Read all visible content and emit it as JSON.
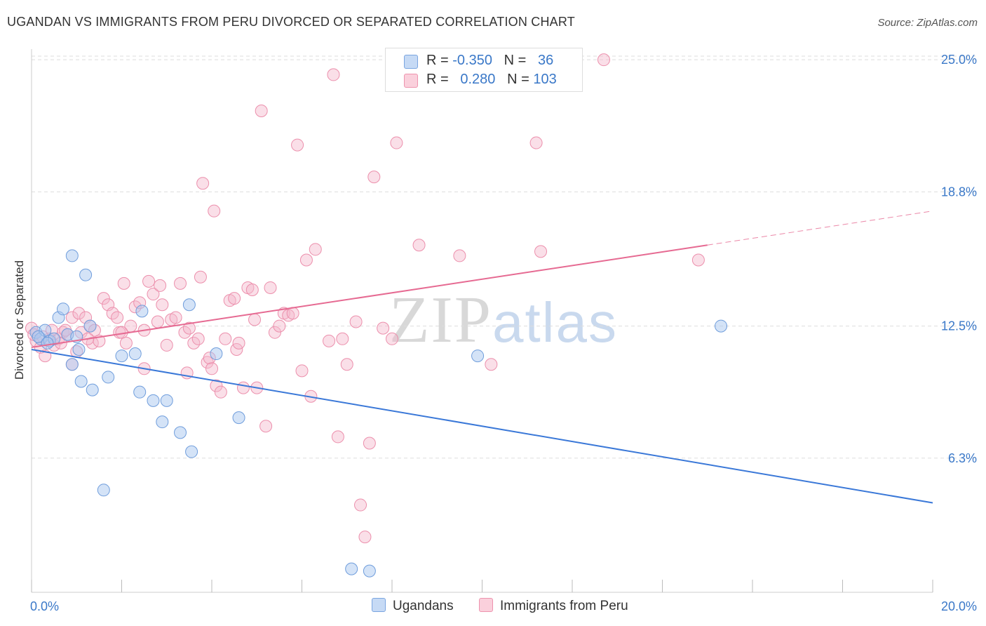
{
  "header": {
    "title": "UGANDAN VS IMMIGRANTS FROM PERU DIVORCED OR SEPARATED CORRELATION CHART",
    "source": "Source: ZipAtlas.com"
  },
  "legend": {
    "rows": [
      {
        "r_label": "R =",
        "r_value": "-0.350",
        "n_label": "N =",
        "n_value": "36",
        "color": "#a9c8f0"
      },
      {
        "r_label": "R =",
        "r_value": "0.280",
        "n_label": "N =",
        "n_value": "103",
        "color": "#f5b8cb"
      }
    ]
  },
  "bottom_legend": {
    "ugandans": "Ugandans",
    "peru": "Immigrants from Peru"
  },
  "watermark": {
    "zip": "ZIP",
    "atlas": "atlas"
  },
  "colors": {
    "blue": "#3a78d8",
    "blue_fill": "#a9c8f0",
    "pink": "#e66a92",
    "pink_fill": "#f5b8cb",
    "axis_text": "#3a78c8",
    "grid": "#dddddd"
  },
  "chart_data": {
    "type": "scatter",
    "title": "UGANDAN VS IMMIGRANTS FROM PERU DIVORCED OR SEPARATED CORRELATION CHART",
    "xlabel": "",
    "ylabel": "Divorced or Separated",
    "xlim": [
      0,
      20
    ],
    "ylim": [
      0,
      25.5
    ],
    "x_tick_labels": [
      "0.0%",
      "20.0%"
    ],
    "y_ticks": [
      6.3,
      12.5,
      18.8,
      25.0
    ],
    "y_tick_labels": [
      "6.3%",
      "12.5%",
      "18.8%",
      "25.0%"
    ],
    "grid": true,
    "series": [
      {
        "name": "Ugandans",
        "color": "#3a78d8",
        "trend": {
          "x0": 0,
          "y0": 11.4,
          "x1": 20,
          "y1": 4.2
        },
        "points": [
          [
            0.1,
            12.2
          ],
          [
            0.2,
            11.9
          ],
          [
            0.3,
            12.3
          ],
          [
            0.4,
            11.8
          ],
          [
            0.5,
            11.9
          ],
          [
            0.6,
            12.9
          ],
          [
            0.7,
            13.3
          ],
          [
            0.8,
            12.1
          ],
          [
            0.9,
            10.7
          ],
          [
            0.9,
            15.8
          ],
          [
            1.0,
            12.0
          ],
          [
            1.05,
            11.4
          ],
          [
            1.1,
            9.9
          ],
          [
            1.2,
            14.9
          ],
          [
            1.3,
            12.5
          ],
          [
            1.35,
            9.5
          ],
          [
            1.6,
            4.8
          ],
          [
            1.7,
            10.1
          ],
          [
            2.0,
            11.1
          ],
          [
            2.3,
            11.2
          ],
          [
            2.4,
            9.4
          ],
          [
            2.45,
            13.2
          ],
          [
            2.7,
            9.0
          ],
          [
            2.9,
            8.0
          ],
          [
            3.0,
            9.0
          ],
          [
            3.3,
            7.5
          ],
          [
            3.5,
            13.5
          ],
          [
            3.55,
            6.6
          ],
          [
            4.1,
            11.2
          ],
          [
            4.6,
            8.2
          ],
          [
            7.1,
            1.1
          ],
          [
            7.5,
            1.0
          ],
          [
            9.9,
            11.1
          ],
          [
            15.3,
            12.5
          ],
          [
            0.15,
            12.0
          ],
          [
            0.35,
            11.7
          ]
        ]
      },
      {
        "name": "Immigrants from Peru",
        "color": "#e66a92",
        "trend": {
          "x0": 0,
          "y0": 11.5,
          "x1": 15.0,
          "y1": 16.3,
          "dash_x1": 20,
          "dash_y1": 17.9
        },
        "points": [
          [
            0.0,
            12.4
          ],
          [
            0.1,
            11.8
          ],
          [
            0.2,
            11.5
          ],
          [
            0.3,
            11.1
          ],
          [
            0.4,
            11.9
          ],
          [
            0.5,
            11.6
          ],
          [
            0.6,
            11.9
          ],
          [
            0.7,
            12.2
          ],
          [
            0.8,
            12.1
          ],
          [
            0.9,
            10.7
          ],
          [
            0.9,
            12.9
          ],
          [
            1.0,
            11.3
          ],
          [
            1.05,
            13.1
          ],
          [
            1.1,
            12.2
          ],
          [
            1.2,
            12.9
          ],
          [
            1.3,
            12.5
          ],
          [
            1.35,
            11.7
          ],
          [
            1.4,
            12.3
          ],
          [
            1.5,
            11.8
          ],
          [
            1.6,
            13.8
          ],
          [
            1.7,
            13.5
          ],
          [
            1.8,
            13.1
          ],
          [
            1.9,
            12.9
          ],
          [
            1.95,
            12.2
          ],
          [
            2.05,
            14.5
          ],
          [
            2.1,
            11.7
          ],
          [
            2.2,
            12.5
          ],
          [
            2.3,
            13.4
          ],
          [
            2.4,
            13.6
          ],
          [
            2.5,
            12.3
          ],
          [
            2.5,
            10.5
          ],
          [
            2.6,
            14.6
          ],
          [
            2.7,
            14.0
          ],
          [
            2.8,
            12.7
          ],
          [
            2.85,
            14.4
          ],
          [
            2.9,
            13.5
          ],
          [
            3.0,
            11.6
          ],
          [
            3.1,
            12.8
          ],
          [
            3.2,
            12.9
          ],
          [
            3.3,
            14.5
          ],
          [
            3.4,
            12.2
          ],
          [
            3.45,
            10.3
          ],
          [
            3.5,
            12.4
          ],
          [
            3.6,
            11.7
          ],
          [
            3.7,
            11.9
          ],
          [
            3.75,
            14.8
          ],
          [
            3.8,
            19.2
          ],
          [
            3.9,
            10.8
          ],
          [
            3.95,
            11.0
          ],
          [
            4.0,
            10.5
          ],
          [
            4.05,
            17.9
          ],
          [
            4.1,
            9.7
          ],
          [
            4.2,
            9.4
          ],
          [
            4.3,
            11.9
          ],
          [
            4.4,
            13.7
          ],
          [
            4.5,
            13.8
          ],
          [
            4.55,
            11.4
          ],
          [
            4.6,
            11.7
          ],
          [
            4.7,
            9.6
          ],
          [
            4.8,
            14.3
          ],
          [
            4.9,
            14.2
          ],
          [
            4.95,
            12.8
          ],
          [
            5.0,
            9.6
          ],
          [
            5.1,
            22.6
          ],
          [
            5.2,
            7.8
          ],
          [
            5.3,
            14.3
          ],
          [
            5.4,
            12.2
          ],
          [
            5.5,
            12.5
          ],
          [
            5.6,
            13.1
          ],
          [
            5.7,
            13.0
          ],
          [
            5.8,
            13.1
          ],
          [
            5.9,
            21.0
          ],
          [
            6.0,
            10.4
          ],
          [
            6.1,
            15.6
          ],
          [
            6.2,
            9.2
          ],
          [
            6.3,
            16.1
          ],
          [
            6.6,
            11.8
          ],
          [
            6.7,
            24.3
          ],
          [
            6.8,
            7.3
          ],
          [
            6.9,
            11.9
          ],
          [
            7.0,
            10.7
          ],
          [
            7.2,
            12.7
          ],
          [
            7.3,
            4.1
          ],
          [
            7.4,
            2.6
          ],
          [
            7.5,
            7.0
          ],
          [
            7.6,
            19.5
          ],
          [
            7.8,
            12.4
          ],
          [
            8.0,
            11.9
          ],
          [
            8.1,
            21.1
          ],
          [
            8.6,
            16.3
          ],
          [
            9.5,
            15.8
          ],
          [
            10.2,
            10.7
          ],
          [
            11.2,
            21.1
          ],
          [
            11.3,
            16.0
          ],
          [
            12.7,
            25.0
          ],
          [
            14.8,
            15.6
          ],
          [
            0.05,
            12.1
          ],
          [
            0.25,
            12.0
          ],
          [
            0.45,
            12.3
          ],
          [
            0.65,
            11.7
          ],
          [
            0.75,
            12.3
          ],
          [
            1.25,
            11.9
          ],
          [
            2.0,
            12.2
          ]
        ]
      }
    ]
  }
}
